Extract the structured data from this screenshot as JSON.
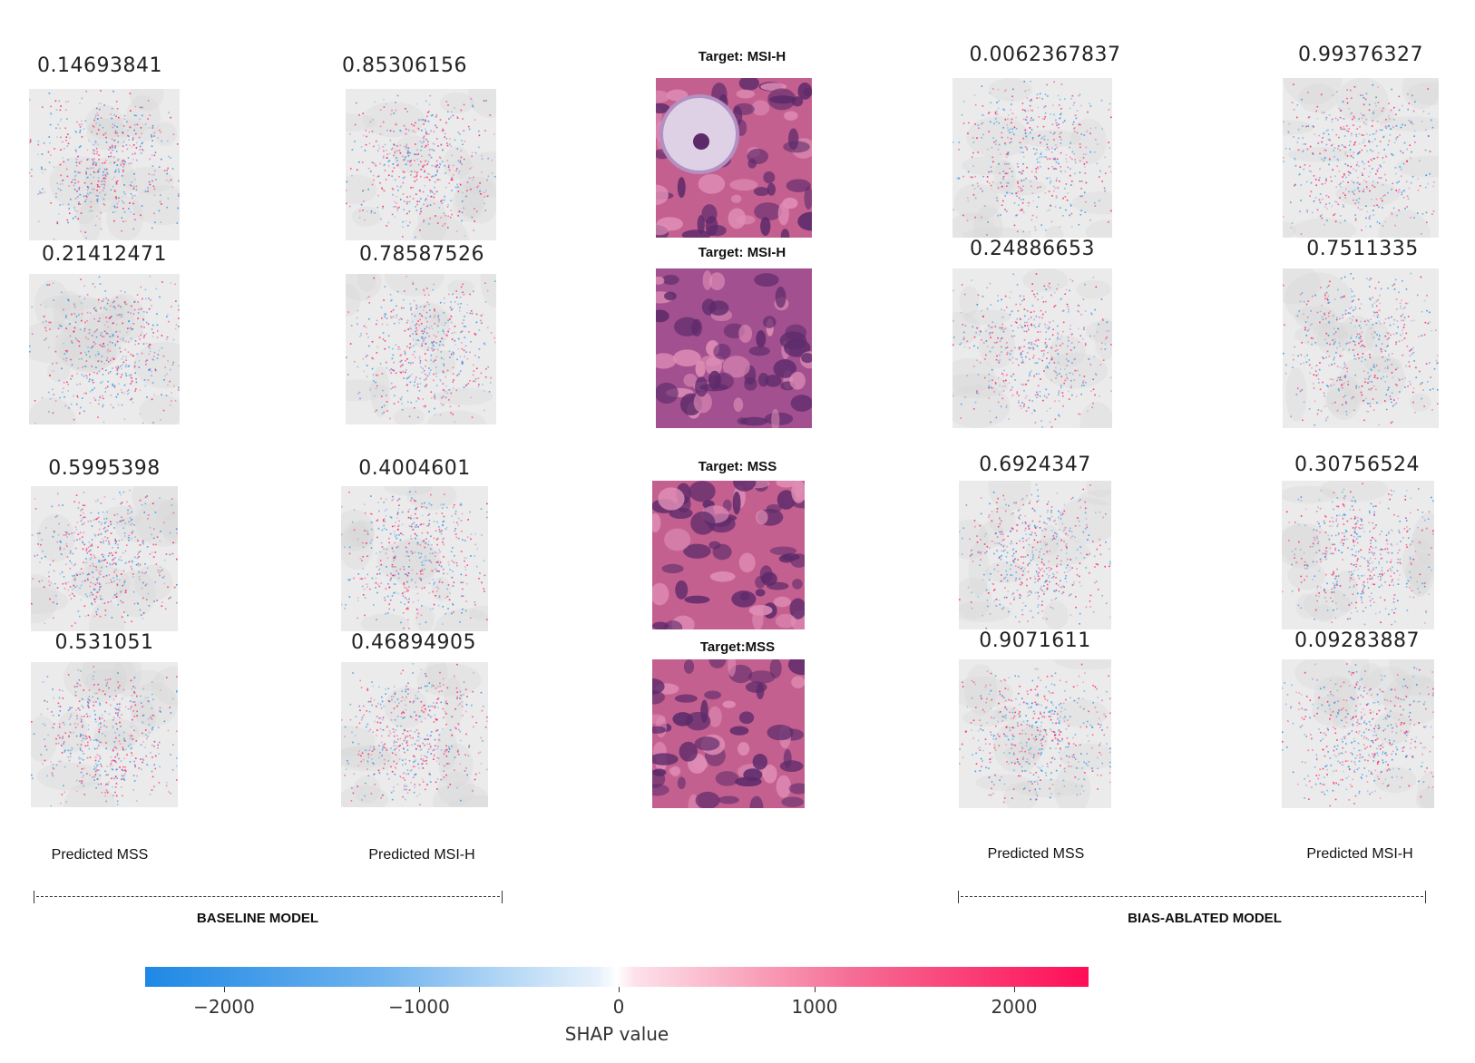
{
  "baseline": {
    "rows": [
      {
        "mss_value": "0.14693841",
        "msih_value": "0.85306156"
      },
      {
        "mss_value": "0.21412471",
        "msih_value": "0.78587526"
      },
      {
        "mss_value": "0.5995398",
        "msih_value": "0.4004601"
      },
      {
        "mss_value": "0.531051",
        "msih_value": "0.46894905"
      }
    ],
    "predicted_mss_label": "Predicted MSS",
    "predicted_msih_label": "Predicted MSI-H",
    "model_label": "BASELINE MODEL"
  },
  "bias_ablated": {
    "rows": [
      {
        "mss_value": "0.0062367837",
        "msih_value": "0.99376327"
      },
      {
        "mss_value": "0.24886653",
        "msih_value": "0.7511335"
      },
      {
        "mss_value": "0.6924347",
        "msih_value": "0.30756524"
      },
      {
        "mss_value": "0.9071611",
        "msih_value": "0.09283887"
      }
    ],
    "predicted_mss_label": "Predicted MSS",
    "predicted_msih_label": "Predicted MSI-H",
    "model_label": "BIAS-ABLATED MODEL"
  },
  "targets": [
    "Target: MSI-H",
    "Target: MSI-H",
    "Target: MSS",
    "Target:MSS"
  ],
  "colorbar": {
    "ticks": [
      "−2000",
      "−1000",
      "0",
      "1000",
      "2000"
    ],
    "title": "SHAP value",
    "colors": {
      "negative": "#1e88e5",
      "zero": "#ffffff",
      "positive": "#ff0d57"
    }
  }
}
